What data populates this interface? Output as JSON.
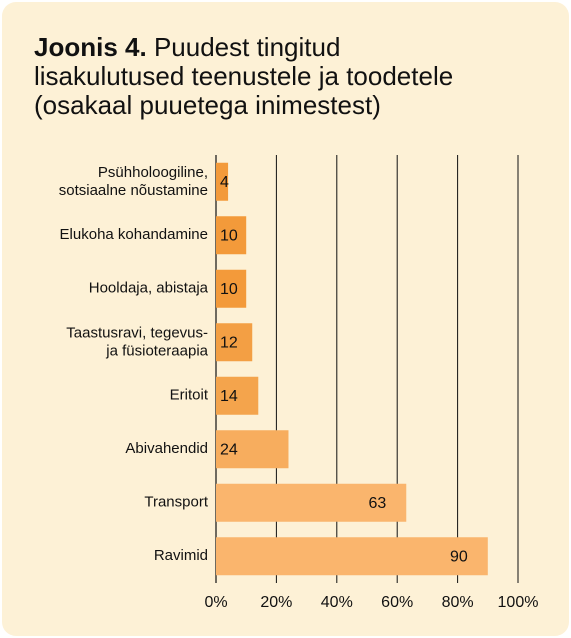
{
  "chart_data": {
    "type": "bar",
    "orientation": "horizontal",
    "title_label": "Joonis 4.",
    "title": [
      "Puudest tingitud",
      "lisakulutused teenustele ja toodetele",
      "(osakaal puuetega inimestest)"
    ],
    "categories": [
      "Psühholoogiline,\nsotsiaalne nõustamine",
      "Elukoha kohandamine",
      "Hooldaja, abistaja",
      "Taastusravi, tegevus-\nja füsioteraapia",
      "Eritoit",
      "Abivahendid",
      "Transport",
      "Ravimid"
    ],
    "values": [
      4,
      10,
      10,
      12,
      14,
      24,
      63,
      90
    ],
    "colors": [
      "#f39a3a",
      "#f39a3a",
      "#f39a3a",
      "#f39f44",
      "#f4a44c",
      "#f7ad5e",
      "#fab56d",
      "#fab56d"
    ],
    "xlim": [
      0,
      100
    ],
    "xticks": [
      {
        "value": 0,
        "label": "0%"
      },
      {
        "value": 20,
        "label": "20%"
      },
      {
        "value": 40,
        "label": "40%"
      },
      {
        "value": 60,
        "label": "60%"
      },
      {
        "value": 80,
        "label": "80%"
      },
      {
        "value": 100,
        "label": "100%"
      }
    ],
    "grid": true
  }
}
